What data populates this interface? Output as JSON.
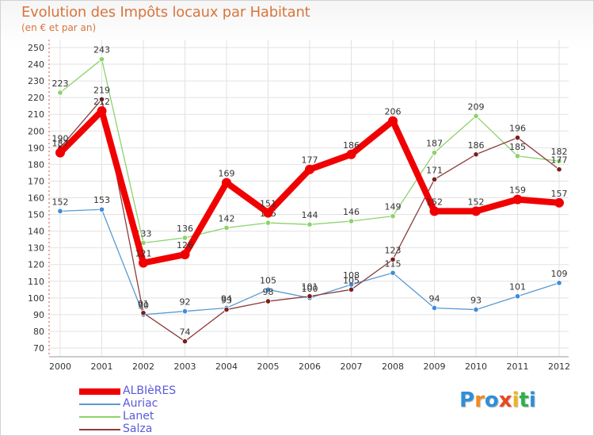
{
  "title": "Evolution des Impôts locaux par Habitant",
  "subtitle": "(en € et par an)",
  "logo": {
    "text": "Proxiti",
    "colors": [
      "#2f8fd8",
      "#f08c1e",
      "#2f8fd8",
      "#e8481e",
      "#f0b41e",
      "#2faf4a",
      "#2f8fd8"
    ]
  },
  "chart_data": {
    "type": "line",
    "title": "Evolution des Impôts locaux par Habitant",
    "subtitle": "(en € et par an)",
    "x": [
      "2000",
      "2001",
      "2002",
      "2003",
      "2004",
      "2005",
      "2006",
      "2007",
      "2008",
      "2009",
      "2010",
      "2011",
      "2012"
    ],
    "ylim": [
      70,
      250
    ],
    "yticks": [
      70,
      80,
      90,
      100,
      110,
      120,
      130,
      140,
      150,
      160,
      170,
      180,
      190,
      200,
      210,
      220,
      230,
      240,
      250
    ],
    "grid": true,
    "legend_position": "bottom-left",
    "series": [
      {
        "name": "Lanet",
        "color": "#8cd26a",
        "marker_color": "#8cd26a",
        "values": [
          223,
          243,
          133,
          136,
          142,
          145,
          144,
          146,
          149,
          187,
          209,
          185,
          182
        ],
        "labels": [
          "223",
          "243",
          "133",
          "136",
          "142",
          "145",
          "144",
          "146",
          "149",
          "187",
          "209",
          "185",
          "182"
        ]
      },
      {
        "name": "Auriac",
        "color": "#5a9ad2",
        "marker_color": "#3c8cdc",
        "values": [
          152,
          153,
          90,
          92,
          94,
          105,
          100,
          108,
          115,
          94,
          93,
          101,
          109
        ],
        "labels": [
          "152",
          "153",
          "90",
          "92",
          "94",
          "105",
          "100",
          "108",
          "115",
          "94",
          "93",
          "101",
          "109"
        ]
      },
      {
        "name": "Salza",
        "color": "#8c3c3c",
        "marker_color": "#7a1e1e",
        "values": [
          190,
          219,
          91,
          74,
          93,
          98,
          101,
          105,
          123,
          171,
          186,
          196,
          177
        ],
        "labels": [
          "190",
          "219",
          "91",
          "74",
          "93",
          "98",
          "101",
          "105",
          "123",
          "171",
          "186",
          "196",
          "177"
        ]
      },
      {
        "name": "ALBIèRES",
        "color": "#f00000",
        "marker_color": "#f00000",
        "values": [
          187,
          212,
          121,
          126,
          169,
          151,
          177,
          186,
          206,
          152,
          152,
          159,
          157
        ],
        "labels": [
          "187",
          "212",
          "121",
          "126",
          "169",
          "151",
          "177",
          "186",
          "206",
          "152",
          "152",
          "159",
          "157"
        ]
      }
    ],
    "legend": [
      "ALBIèRES",
      "Auriac",
      "Lanet",
      "Salza"
    ]
  }
}
